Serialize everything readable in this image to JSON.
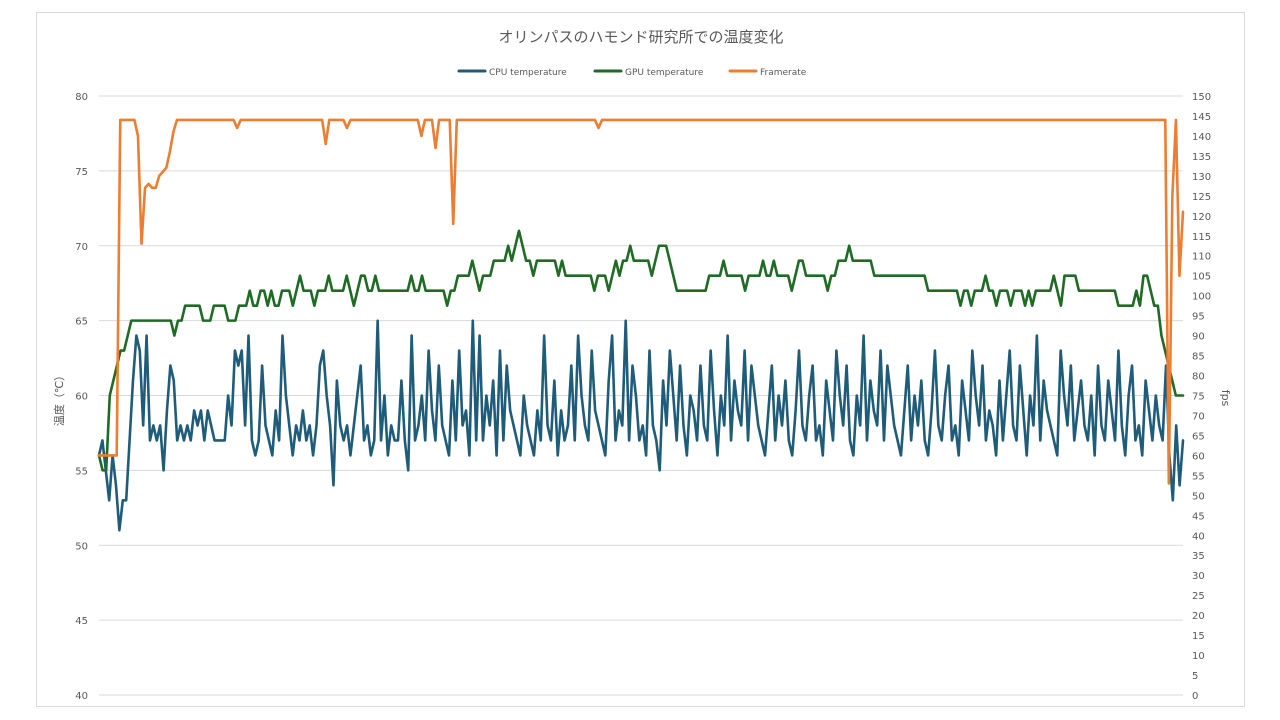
{
  "chart_data": {
    "type": "line",
    "title": "オリンパスのハモンド研究所での温度変化",
    "ylabel": "温度（℃）",
    "y2label": "fps",
    "xlabel": "",
    "ylim": [
      40,
      80
    ],
    "y2lim": [
      0,
      150
    ],
    "yticks": [
      "40",
      "45",
      "50",
      "55",
      "60",
      "65",
      "70",
      "75",
      "80"
    ],
    "y2ticks": [
      "0",
      "5",
      "10",
      "15",
      "20",
      "25",
      "30",
      "35",
      "40",
      "45",
      "50",
      "55",
      "60",
      "65",
      "70",
      "75",
      "80",
      "85",
      "90",
      "95",
      "100",
      "105",
      "110",
      "115",
      "120",
      "125",
      "130",
      "135",
      "140",
      "145",
      "150"
    ],
    "grid": true,
    "legend_position": "top",
    "series": [
      {
        "name": "CPU temperature",
        "axis": "left",
        "color": "#1f5c7a",
        "values": [
          56,
          57,
          55,
          53,
          56,
          54,
          51,
          53,
          53,
          57,
          61,
          64,
          63,
          58,
          64,
          57,
          58,
          57,
          58,
          55,
          59,
          62,
          61,
          57,
          58,
          57,
          58,
          57,
          59,
          58,
          59,
          57,
          59,
          58,
          57,
          57,
          57,
          57,
          60,
          58,
          63,
          62,
          63,
          58,
          64,
          57,
          56,
          57,
          62,
          58,
          57,
          56,
          59,
          57,
          64,
          60,
          58,
          56,
          58,
          57,
          59,
          57,
          58,
          56,
          58,
          62,
          63,
          60,
          58,
          54,
          61,
          58,
          57,
          58,
          56,
          58,
          60,
          62,
          57,
          58,
          56,
          57,
          65,
          57,
          60,
          56,
          58,
          57,
          57,
          61,
          57,
          55,
          64,
          57,
          58,
          60,
          57,
          63,
          59,
          57,
          62,
          58,
          57,
          56,
          61,
          57,
          63,
          58,
          59,
          56,
          65,
          57,
          64,
          57,
          60,
          58,
          61,
          56,
          63,
          57,
          62,
          59,
          58,
          57,
          56,
          60,
          58,
          57,
          56,
          59,
          57,
          64,
          58,
          57,
          61,
          56,
          59,
          57,
          58,
          62,
          57,
          64,
          60,
          58,
          57,
          63,
          59,
          58,
          57,
          56,
          61,
          64,
          57,
          59,
          58,
          65,
          57,
          62,
          60,
          57,
          58,
          56,
          63,
          58,
          57,
          55,
          61,
          58,
          63,
          60,
          57,
          62,
          58,
          56,
          60,
          59,
          57,
          62,
          58,
          57,
          63,
          59,
          56,
          60,
          58,
          64,
          57,
          61,
          59,
          58,
          63,
          57,
          62,
          60,
          58,
          57,
          56,
          59,
          62,
          57,
          60,
          58,
          61,
          57,
          56,
          59,
          63,
          58,
          57,
          60,
          62,
          57,
          58,
          56,
          61,
          59,
          57,
          63,
          60,
          58,
          62,
          57,
          56,
          60,
          58,
          64,
          57,
          61,
          59,
          58,
          63,
          57,
          62,
          60,
          58,
          57,
          56,
          59,
          62,
          57,
          60,
          58,
          61,
          57,
          56,
          59,
          63,
          58,
          57,
          60,
          62,
          57,
          58,
          56,
          61,
          59,
          57,
          63,
          60,
          58,
          62,
          57,
          59,
          58,
          56,
          61,
          57,
          60,
          63,
          58,
          57,
          62,
          59,
          56,
          60,
          58,
          64,
          57,
          61,
          59,
          58,
          57,
          56,
          63,
          60,
          58,
          62,
          57,
          59,
          61,
          58,
          57,
          60,
          56,
          62,
          58,
          57,
          61,
          59,
          57,
          63,
          58,
          56,
          60,
          62,
          57,
          58,
          56,
          61,
          59,
          57,
          60,
          58,
          57,
          62,
          56,
          53,
          58,
          54,
          57
        ]
      },
      {
        "name": "GPU temperature",
        "axis": "left",
        "color": "#1e6b23",
        "values": [
          56,
          55,
          55,
          60,
          61,
          62,
          63,
          63,
          64,
          65,
          65,
          65,
          65,
          65,
          65,
          65,
          65,
          65,
          65,
          65,
          65,
          64,
          65,
          65,
          66,
          66,
          66,
          66,
          66,
          65,
          65,
          65,
          66,
          66,
          66,
          66,
          65,
          65,
          65,
          66,
          66,
          66,
          67,
          66,
          66,
          67,
          67,
          66,
          67,
          66,
          66,
          67,
          67,
          67,
          66,
          67,
          68,
          67,
          67,
          67,
          66,
          67,
          67,
          67,
          68,
          67,
          67,
          67,
          67,
          68,
          67,
          66,
          67,
          68,
          68,
          67,
          67,
          68,
          67,
          67,
          67,
          67,
          67,
          67,
          67,
          67,
          67,
          68,
          67,
          67,
          68,
          67,
          67,
          67,
          67,
          67,
          67,
          66,
          67,
          67,
          68,
          68,
          68,
          68,
          69,
          68,
          67,
          68,
          68,
          68,
          69,
          69,
          69,
          69,
          70,
          69,
          70,
          71,
          70,
          69,
          69,
          68,
          69,
          69,
          69,
          69,
          69,
          69,
          68,
          69,
          68,
          68,
          68,
          68,
          68,
          68,
          68,
          68,
          67,
          68,
          68,
          68,
          67,
          68,
          69,
          68,
          69,
          69,
          70,
          69,
          69,
          69,
          69,
          69,
          68,
          69,
          70,
          70,
          70,
          69,
          68,
          67,
          67,
          67,
          67,
          67,
          67,
          67,
          67,
          67,
          68,
          68,
          68,
          68,
          69,
          68,
          68,
          68,
          68,
          68,
          67,
          68,
          68,
          68,
          68,
          69,
          68,
          68,
          69,
          68,
          68,
          68,
          68,
          67,
          68,
          69,
          69,
          68,
          68,
          68,
          68,
          68,
          68,
          67,
          68,
          68,
          69,
          69,
          69,
          70,
          69,
          69,
          69,
          69,
          69,
          69,
          68,
          68,
          68,
          68,
          68,
          68,
          68,
          68,
          68,
          68,
          68,
          68,
          68,
          68,
          68,
          67,
          67,
          67,
          67,
          67,
          67,
          67,
          67,
          67,
          66,
          67,
          67,
          66,
          67,
          67,
          67,
          68,
          67,
          67,
          66,
          67,
          67,
          67,
          66,
          67,
          67,
          67,
          66,
          67,
          66,
          67,
          67,
          67,
          67,
          67,
          68,
          67,
          66,
          68,
          68,
          68,
          68,
          67,
          67,
          67,
          67,
          67,
          67,
          67,
          67,
          67,
          67,
          67,
          66,
          66,
          66,
          66,
          66,
          67,
          66,
          68,
          68,
          67,
          66,
          66,
          64,
          63,
          62,
          61,
          60,
          60,
          60
        ]
      },
      {
        "name": "Framerate",
        "axis": "right",
        "color": "#ed7d31",
        "values": [
          60,
          60,
          60,
          60,
          60,
          60,
          144,
          144,
          144,
          144,
          144,
          140,
          113,
          127,
          128,
          127,
          127,
          130,
          131,
          132,
          136,
          141,
          144,
          144,
          144,
          144,
          144,
          144,
          144,
          144,
          144,
          144,
          144,
          144,
          144,
          144,
          144,
          144,
          144,
          142,
          144,
          144,
          144,
          144,
          144,
          144,
          144,
          144,
          144,
          144,
          144,
          144,
          144,
          144,
          144,
          144,
          144,
          144,
          144,
          144,
          144,
          144,
          144,
          144,
          138,
          144,
          144,
          144,
          144,
          144,
          142,
          144,
          144,
          144,
          144,
          144,
          144,
          144,
          144,
          144,
          144,
          144,
          144,
          144,
          144,
          144,
          144,
          144,
          144,
          144,
          144,
          140,
          144,
          144,
          144,
          137,
          144,
          144,
          144,
          144,
          118,
          144,
          144,
          144,
          144,
          144,
          144,
          144,
          144,
          144,
          144,
          144,
          144,
          144,
          144,
          144,
          144,
          144,
          144,
          144,
          144,
          144,
          144,
          144,
          144,
          144,
          144,
          144,
          144,
          144,
          144,
          144,
          144,
          144,
          144,
          144,
          144,
          144,
          144,
          144,
          144,
          142,
          144,
          144,
          144,
          144,
          144,
          144,
          144,
          144,
          144,
          144,
          144,
          144,
          144,
          144,
          144,
          144,
          144,
          144,
          144,
          144,
          144,
          144,
          144,
          144,
          144,
          144,
          144,
          144,
          144,
          144,
          144,
          144,
          144,
          144,
          144,
          144,
          144,
          144,
          144,
          144,
          144,
          144,
          144,
          144,
          144,
          144,
          144,
          144,
          144,
          144,
          144,
          144,
          144,
          144,
          144,
          144,
          144,
          144,
          144,
          144,
          144,
          144,
          144,
          144,
          144,
          144,
          144,
          144,
          144,
          144,
          144,
          144,
          144,
          144,
          144,
          144,
          144,
          144,
          144,
          144,
          144,
          144,
          144,
          144,
          144,
          144,
          144,
          144,
          144,
          144,
          144,
          144,
          144,
          144,
          144,
          144,
          144,
          144,
          144,
          144,
          144,
          144,
          144,
          144,
          144,
          144,
          144,
          144,
          144,
          144,
          144,
          144,
          144,
          144,
          144,
          144,
          144,
          144,
          144,
          144,
          144,
          144,
          144,
          144,
          144,
          144,
          144,
          144,
          144,
          144,
          144,
          144,
          144,
          144,
          144,
          144,
          144,
          144,
          144,
          144,
          144,
          144,
          144,
          144,
          144,
          144,
          144,
          144,
          144,
          144,
          144,
          144,
          144,
          144,
          144,
          144,
          144,
          144,
          144,
          144,
          53,
          125,
          144,
          105,
          121
        ]
      }
    ]
  }
}
